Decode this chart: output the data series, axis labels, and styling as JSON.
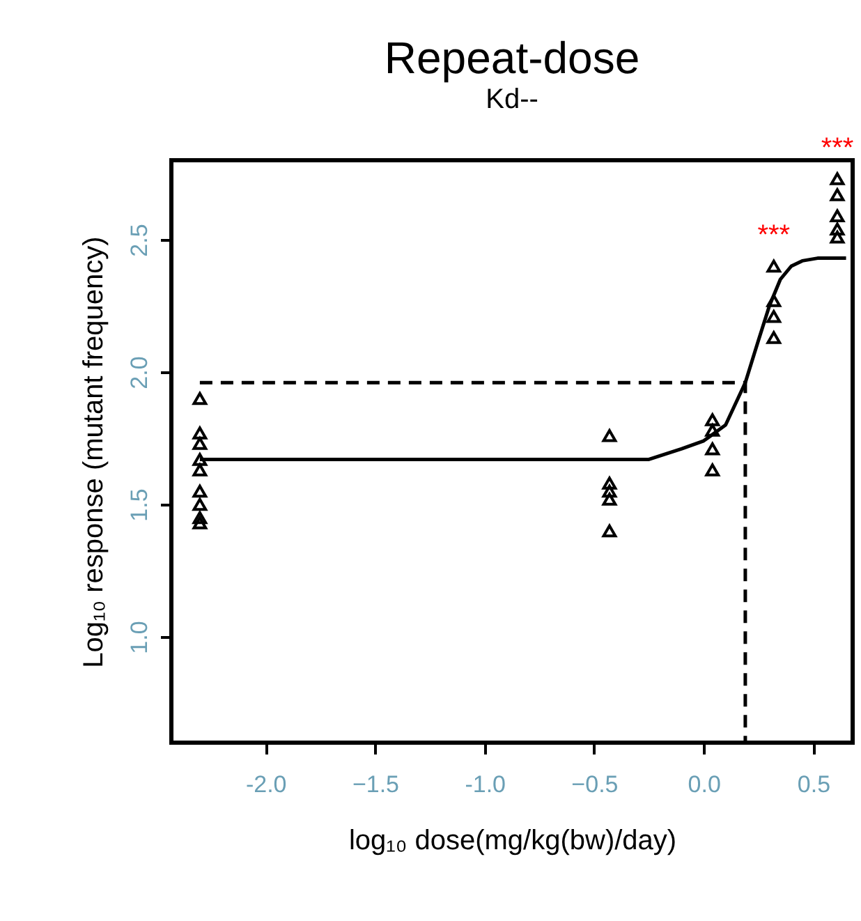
{
  "chart_data": {
    "type": "scatter",
    "title": "Repeat-dose",
    "subtitle": "Kd--",
    "xlabel": "log₁₀ dose(mg/kg(bw)/day)",
    "ylabel": "Log₁₀ response (mutant frequency)",
    "xlim": [
      -2.43,
      0.68
    ],
    "xticks": [
      {
        "value": -2.0,
        "label": "-2.0"
      },
      -1.5,
      {
        "value": -1.0,
        "label": "-1.0"
      },
      -0.5,
      {
        "value": 0.0,
        "label": "0.0"
      },
      0.5
    ],
    "ylim": [
      0.6,
      2.8
    ],
    "yticks": [
      {
        "value": 1.0,
        "label": "1.0"
      },
      1.5,
      {
        "value": 2.0,
        "label": "2.0"
      },
      2.5
    ],
    "grid": false,
    "series": [
      {
        "color": "#000000",
        "marker": "triangle",
        "x": [
          -2.3,
          -2.3,
          -2.3,
          -2.3,
          -2.3,
          -2.3,
          -2.3,
          -2.3,
          -2.3,
          -0.43,
          -0.43,
          -0.43,
          -0.43,
          -0.43,
          0.04,
          0.04,
          0.04,
          0.04,
          0.32,
          0.32,
          0.32,
          0.32,
          0.61,
          0.61,
          0.61,
          0.61,
          0.61
        ],
        "values": [
          1.9,
          1.77,
          1.73,
          1.67,
          1.63,
          1.55,
          1.5,
          1.45,
          1.43,
          1.76,
          1.58,
          1.55,
          1.52,
          1.4,
          1.82,
          1.78,
          1.71,
          1.63,
          2.4,
          2.27,
          2.21,
          2.13,
          2.73,
          2.67,
          2.59,
          2.54,
          2.51
        ]
      },
      {
        "type": "line",
        "color": "#000000",
        "line_style": "solid",
        "x": [
          -2.3,
          -0.25,
          -0.1,
          0.0,
          0.1,
          0.19,
          0.25,
          0.3,
          0.35,
          0.4,
          0.45,
          0.52,
          0.65
        ],
        "values": [
          1.67,
          1.67,
          1.71,
          1.74,
          1.8,
          1.96,
          2.12,
          2.25,
          2.35,
          2.4,
          2.42,
          2.43,
          2.43
        ]
      },
      {
        "type": "line",
        "color": "#000000",
        "line_style": "dashed",
        "x": [
          -2.3,
          0.19,
          0.19
        ],
        "values": [
          1.96,
          1.96,
          0.6
        ]
      }
    ],
    "annotations": [
      "***",
      "***"
    ]
  }
}
